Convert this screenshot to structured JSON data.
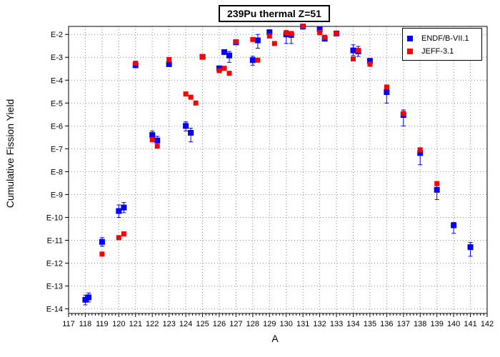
{
  "chart_data": {
    "type": "scatter",
    "title": "239Pu thermal Z=51",
    "xlabel": "A",
    "ylabel": "Cumulative Fission Yield",
    "x_range": [
      117,
      142
    ],
    "x_ticks": [
      117,
      118,
      119,
      120,
      121,
      122,
      123,
      124,
      125,
      126,
      127,
      128,
      129,
      130,
      131,
      132,
      133,
      134,
      135,
      136,
      137,
      138,
      139,
      140,
      141,
      142
    ],
    "y_scale": "log",
    "y_range_exponent": [
      -14.2,
      -1.65
    ],
    "y_ticks": [
      {
        "exp": -2,
        "label": "E-2"
      },
      {
        "exp": -3,
        "label": "E-3"
      },
      {
        "exp": -4,
        "label": "E-4"
      },
      {
        "exp": -5,
        "label": "E-5"
      },
      {
        "exp": -6,
        "label": "E-6"
      },
      {
        "exp": -7,
        "label": "E-7"
      },
      {
        "exp": -8,
        "label": "E-8"
      },
      {
        "exp": -9,
        "label": "E-9"
      },
      {
        "exp": -10,
        "label": "E-10"
      },
      {
        "exp": -11,
        "label": "E-11"
      },
      {
        "exp": -12,
        "label": "E-12"
      },
      {
        "exp": -13,
        "label": "E-13"
      },
      {
        "exp": -14,
        "label": "E-14"
      }
    ],
    "grid": true,
    "legend_position": "top-right",
    "series": [
      {
        "name": "ENDF/B-VII.1",
        "marker": "square",
        "color": "#0000ff",
        "points": [
          {
            "x": 118.0,
            "y": 2.5e-14,
            "err": [
              1.5e-14,
              4e-14
            ]
          },
          {
            "x": 118.2,
            "y": 3.2e-14,
            "err": [
              2e-14,
              5e-14
            ]
          },
          {
            "x": 119.0,
            "y": 8.5e-12,
            "err": [
              5.5e-12,
              1.3e-11
            ]
          },
          {
            "x": 120.0,
            "y": 1.9e-10,
            "err": [
              1e-10,
              3.5e-10
            ]
          },
          {
            "x": 120.3,
            "y": 2.7e-10,
            "err": [
              1.6e-10,
              4.5e-10
            ]
          },
          {
            "x": 121.0,
            "y": 0.00045,
            "err": [
              0.00035,
              0.00055
            ]
          },
          {
            "x": 122.0,
            "y": 4e-07,
            "err": [
              2.5e-07,
              6e-07
            ]
          },
          {
            "x": 122.3,
            "y": 2.3e-07,
            "err": [
              1.3e-07,
              3.5e-07
            ]
          },
          {
            "x": 123.0,
            "y": 0.0005,
            "err": [
              0.0004,
              0.0006
            ]
          },
          {
            "x": 124.0,
            "y": 1e-06,
            "err": [
              6e-07,
              1.5e-06
            ]
          },
          {
            "x": 124.3,
            "y": 5e-07,
            "err": [
              2e-07,
              8e-07
            ]
          },
          {
            "x": 125.0,
            "y": 0.00105
          },
          {
            "x": 126.0,
            "y": 0.00033
          },
          {
            "x": 126.3,
            "y": 0.0017
          },
          {
            "x": 126.6,
            "y": 0.0012,
            "err": [
              0.0006,
              0.0018
            ]
          },
          {
            "x": 127.0,
            "y": 0.0045
          },
          {
            "x": 128.0,
            "y": 0.00075,
            "err": [
              0.00045,
              0.0011
            ]
          },
          {
            "x": 128.3,
            "y": 0.0055,
            "err": [
              0.0025,
              0.01
            ]
          },
          {
            "x": 129.0,
            "y": 0.0125
          },
          {
            "x": 130.0,
            "y": 0.01,
            "err": [
              0.004,
              0.014
            ]
          },
          {
            "x": 130.3,
            "y": 0.0095,
            "err": [
              0.004,
              0.013
            ]
          },
          {
            "x": 131.0,
            "y": 0.022
          },
          {
            "x": 132.0,
            "y": 0.017
          },
          {
            "x": 132.3,
            "y": 0.0065
          },
          {
            "x": 133.0,
            "y": 0.011
          },
          {
            "x": 134.0,
            "y": 0.002,
            "err": [
              0.0012,
              0.0035
            ]
          },
          {
            "x": 134.3,
            "y": 0.0018,
            "err": [
              0.0011,
              0.003
            ]
          },
          {
            "x": 135.0,
            "y": 0.0007
          },
          {
            "x": 136.0,
            "y": 3e-05,
            "err": [
              1e-05,
              5e-05
            ]
          },
          {
            "x": 137.0,
            "y": 3e-06,
            "err": [
              1e-06,
              5e-06
            ]
          },
          {
            "x": 138.0,
            "y": 6.5e-08,
            "err": [
              2e-08,
              9e-08
            ]
          },
          {
            "x": 139.0,
            "y": 1.6e-09,
            "err": [
              6e-10,
              2.5e-09
            ]
          },
          {
            "x": 140.0,
            "y": 4.5e-11,
            "err": [
              2e-11,
              6e-11
            ]
          },
          {
            "x": 141.0,
            "y": 5e-12,
            "err": [
              2e-12,
              8e-12
            ]
          }
        ]
      },
      {
        "name": "JEFF-3.1",
        "marker": "square",
        "color": "#ff0000",
        "points": [
          {
            "x": 119.0,
            "y": 2.5e-12
          },
          {
            "x": 120.0,
            "y": 1.3e-11
          },
          {
            "x": 120.3,
            "y": 1.9e-11
          },
          {
            "x": 121.0,
            "y": 0.00055
          },
          {
            "x": 122.0,
            "y": 2.5e-07
          },
          {
            "x": 122.3,
            "y": 1.3e-07
          },
          {
            "x": 123.0,
            "y": 0.0008
          },
          {
            "x": 124.0,
            "y": 2.5e-05
          },
          {
            "x": 124.3,
            "y": 1.8e-05
          },
          {
            "x": 124.6,
            "y": 1e-05
          },
          {
            "x": 125.0,
            "y": 0.00105
          },
          {
            "x": 126.0,
            "y": 0.00026
          },
          {
            "x": 126.3,
            "y": 0.00033
          },
          {
            "x": 126.6,
            "y": 0.0002
          },
          {
            "x": 127.0,
            "y": 0.0048
          },
          {
            "x": 128.0,
            "y": 0.006
          },
          {
            "x": 128.3,
            "y": 0.00075
          },
          {
            "x": 129.0,
            "y": 0.0085
          },
          {
            "x": 129.3,
            "y": 0.004
          },
          {
            "x": 130.0,
            "y": 0.012
          },
          {
            "x": 130.3,
            "y": 0.011
          },
          {
            "x": 131.0,
            "y": 0.023
          },
          {
            "x": 132.0,
            "y": 0.012
          },
          {
            "x": 132.3,
            "y": 0.0075
          },
          {
            "x": 133.0,
            "y": 0.011
          },
          {
            "x": 134.0,
            "y": 0.00085
          },
          {
            "x": 134.3,
            "y": 0.002
          },
          {
            "x": 135.0,
            "y": 0.0005
          },
          {
            "x": 136.0,
            "y": 5e-05
          },
          {
            "x": 137.0,
            "y": 3.5e-06
          },
          {
            "x": 138.0,
            "y": 9e-08
          },
          {
            "x": 139.0,
            "y": 3e-09
          }
        ]
      }
    ]
  }
}
